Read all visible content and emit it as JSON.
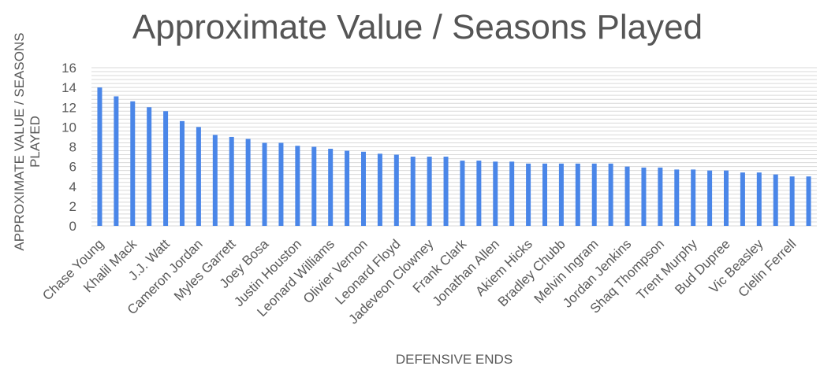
{
  "chart_data": {
    "type": "bar",
    "title": "Approximate Value / Seasons Played",
    "xlabel": "DEFENSIVE ENDS",
    "ylabel": "APPROXIMATE VALUE / SEASONS PLAYED",
    "ylim": [
      0,
      16
    ],
    "yticks": [
      0,
      2,
      4,
      6,
      8,
      10,
      12,
      14,
      16
    ],
    "grid": true,
    "color": "#4a86e8",
    "categories": [
      "Chase Young",
      "",
      "Khalil Mack",
      "",
      "J.J. Watt",
      "",
      "Cameron Jordan",
      "",
      "Myles Garrett",
      "",
      "Joey Bosa",
      "",
      "Justin Houston",
      "",
      "Leonard Williams",
      "",
      "Olivier Vernon",
      "",
      "Leonard Floyd",
      "",
      "Jadeveon Clowney",
      "",
      "Frank Clark",
      "",
      "Jonathan Allen",
      "",
      "Akiem Hicks",
      "",
      "Bradley Chubb",
      "",
      "Melvin Ingram",
      "",
      "Jordan Jenkins",
      "",
      "Shaq Thompson",
      "",
      "Trent Murphy",
      "",
      "Bud Dupree",
      "",
      "Vic Beasley",
      "",
      "Clelin Ferrell",
      ""
    ],
    "values": [
      14.0,
      13.1,
      12.6,
      12.0,
      11.6,
      10.6,
      10.0,
      9.2,
      9.0,
      8.8,
      8.4,
      8.4,
      8.1,
      8.0,
      7.8,
      7.6,
      7.5,
      7.3,
      7.2,
      7.0,
      7.0,
      7.0,
      6.6,
      6.6,
      6.5,
      6.5,
      6.3,
      6.3,
      6.3,
      6.3,
      6.3,
      6.3,
      6.0,
      5.9,
      5.9,
      5.7,
      5.7,
      5.6,
      5.6,
      5.4,
      5.4,
      5.2,
      5.0,
      5.0
    ]
  }
}
